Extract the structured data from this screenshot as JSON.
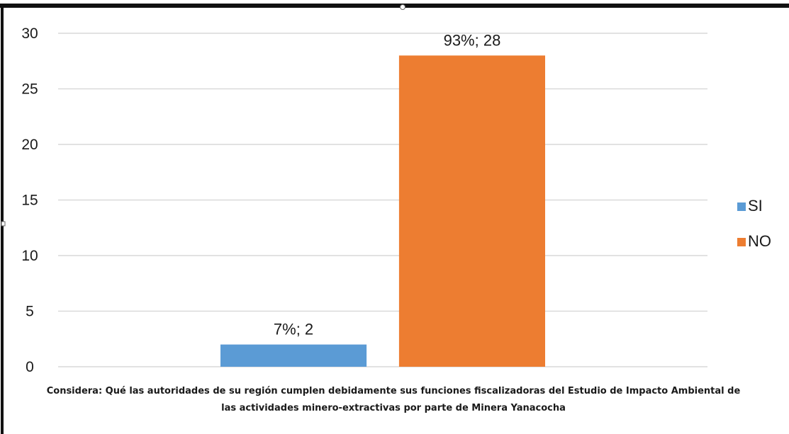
{
  "chart_data": {
    "type": "bar",
    "categories": [
      ""
    ],
    "series": [
      {
        "name": "SI",
        "values": [
          2
        ],
        "color": "#5B9BD5",
        "data_label": "7%; 2"
      },
      {
        "name": "NO",
        "values": [
          28
        ],
        "color": "#ED7D31",
        "data_label": "93%; 28"
      }
    ],
    "title": "",
    "xlabel": "Considera: Qué las autoridades de su región cumplen debidamente sus funciones fiscalizadoras  del Estudio de Impacto Ambiental de las actividades minero-extractivas por parte de Minera Yanacocha",
    "ylabel": "",
    "ylim": [
      0,
      30
    ],
    "yticks": [
      0,
      5,
      10,
      15,
      20,
      25,
      30
    ],
    "grid": true,
    "legend_position": "right"
  }
}
